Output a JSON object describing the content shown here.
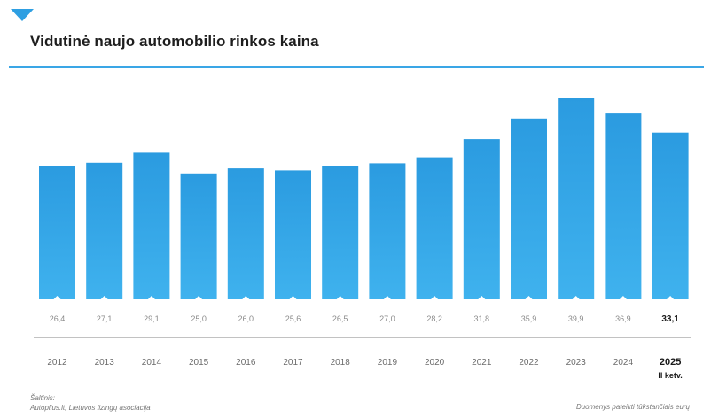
{
  "header": {
    "title": "Vidutinė naujo automobilio rinkos kaina"
  },
  "footer": {
    "source": "Šaltinis:\nAutoplius.lt, Lietuvos lizingų asociacija",
    "credit": "Duomenys pateikti tūkstančiais eurų"
  },
  "colors": {
    "accent": "#2e9fe2",
    "bar_top": "#2b9be0",
    "bar_bottom": "#3fb2ee"
  },
  "chart_data": {
    "type": "bar",
    "categories": [
      "2012",
      "2013",
      "2014",
      "2015",
      "2016",
      "2017",
      "2018",
      "2019",
      "2020",
      "2021",
      "2022",
      "2023",
      "2024",
      "2025"
    ],
    "category_sublabels": [
      "",
      "",
      "",
      "",
      "",
      "",
      "",
      "",
      "",
      "",
      "",
      "",
      "",
      "II ketv."
    ],
    "values": [
      26.4,
      27.1,
      29.1,
      25.0,
      26.0,
      25.6,
      26.5,
      27.0,
      28.2,
      31.8,
      35.9,
      39.9,
      36.9,
      33.1
    ],
    "value_labels": [
      "26,4",
      "27,1",
      "29,1",
      "25,0",
      "26,0",
      "25,6",
      "26,5",
      "27,0",
      "28,2",
      "31,8",
      "35,9",
      "39,9",
      "36,9",
      "33,1"
    ],
    "highlight_index": 13,
    "ylim": [
      0,
      41.5
    ],
    "grid": false,
    "legend": "none",
    "title": "",
    "xlabel": "",
    "ylabel": ""
  }
}
